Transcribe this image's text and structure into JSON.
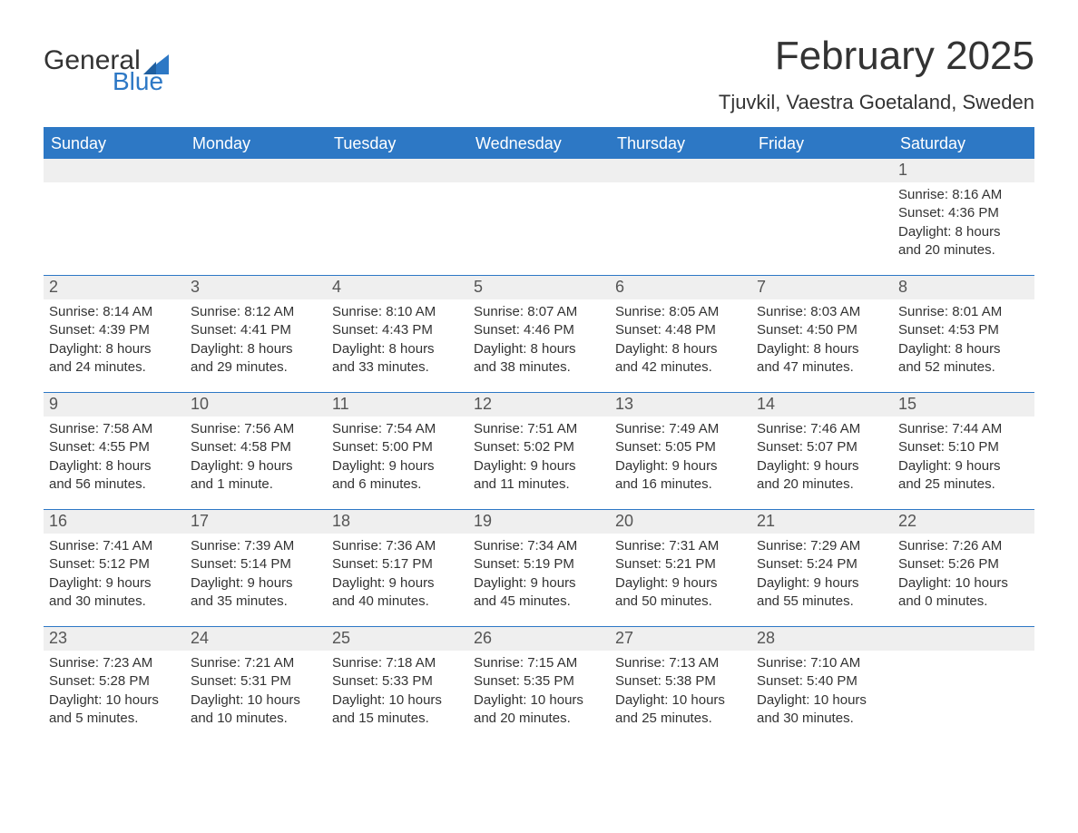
{
  "brand": {
    "word1": "General",
    "word2": "Blue",
    "logo_color": "#2d78c5"
  },
  "header": {
    "title": "February 2025",
    "location": "Tjuvkil, Vaestra Goetaland, Sweden"
  },
  "colors": {
    "header_bg": "#2d78c5",
    "header_text": "#ffffff",
    "daynum_bg": "#efefef",
    "body_text": "#333333",
    "rule": "#2d78c5",
    "page_bg": "#ffffff"
  },
  "weekdays": [
    "Sunday",
    "Monday",
    "Tuesday",
    "Wednesday",
    "Thursday",
    "Friday",
    "Saturday"
  ],
  "weeks": [
    [
      {
        "day": "",
        "sunrise": "",
        "sunset": "",
        "daylight1": "",
        "daylight2": ""
      },
      {
        "day": "",
        "sunrise": "",
        "sunset": "",
        "daylight1": "",
        "daylight2": ""
      },
      {
        "day": "",
        "sunrise": "",
        "sunset": "",
        "daylight1": "",
        "daylight2": ""
      },
      {
        "day": "",
        "sunrise": "",
        "sunset": "",
        "daylight1": "",
        "daylight2": ""
      },
      {
        "day": "",
        "sunrise": "",
        "sunset": "",
        "daylight1": "",
        "daylight2": ""
      },
      {
        "day": "",
        "sunrise": "",
        "sunset": "",
        "daylight1": "",
        "daylight2": ""
      },
      {
        "day": "1",
        "sunrise": "Sunrise: 8:16 AM",
        "sunset": "Sunset: 4:36 PM",
        "daylight1": "Daylight: 8 hours",
        "daylight2": "and 20 minutes."
      }
    ],
    [
      {
        "day": "2",
        "sunrise": "Sunrise: 8:14 AM",
        "sunset": "Sunset: 4:39 PM",
        "daylight1": "Daylight: 8 hours",
        "daylight2": "and 24 minutes."
      },
      {
        "day": "3",
        "sunrise": "Sunrise: 8:12 AM",
        "sunset": "Sunset: 4:41 PM",
        "daylight1": "Daylight: 8 hours",
        "daylight2": "and 29 minutes."
      },
      {
        "day": "4",
        "sunrise": "Sunrise: 8:10 AM",
        "sunset": "Sunset: 4:43 PM",
        "daylight1": "Daylight: 8 hours",
        "daylight2": "and 33 minutes."
      },
      {
        "day": "5",
        "sunrise": "Sunrise: 8:07 AM",
        "sunset": "Sunset: 4:46 PM",
        "daylight1": "Daylight: 8 hours",
        "daylight2": "and 38 minutes."
      },
      {
        "day": "6",
        "sunrise": "Sunrise: 8:05 AM",
        "sunset": "Sunset: 4:48 PM",
        "daylight1": "Daylight: 8 hours",
        "daylight2": "and 42 minutes."
      },
      {
        "day": "7",
        "sunrise": "Sunrise: 8:03 AM",
        "sunset": "Sunset: 4:50 PM",
        "daylight1": "Daylight: 8 hours",
        "daylight2": "and 47 minutes."
      },
      {
        "day": "8",
        "sunrise": "Sunrise: 8:01 AM",
        "sunset": "Sunset: 4:53 PM",
        "daylight1": "Daylight: 8 hours",
        "daylight2": "and 52 minutes."
      }
    ],
    [
      {
        "day": "9",
        "sunrise": "Sunrise: 7:58 AM",
        "sunset": "Sunset: 4:55 PM",
        "daylight1": "Daylight: 8 hours",
        "daylight2": "and 56 minutes."
      },
      {
        "day": "10",
        "sunrise": "Sunrise: 7:56 AM",
        "sunset": "Sunset: 4:58 PM",
        "daylight1": "Daylight: 9 hours",
        "daylight2": "and 1 minute."
      },
      {
        "day": "11",
        "sunrise": "Sunrise: 7:54 AM",
        "sunset": "Sunset: 5:00 PM",
        "daylight1": "Daylight: 9 hours",
        "daylight2": "and 6 minutes."
      },
      {
        "day": "12",
        "sunrise": "Sunrise: 7:51 AM",
        "sunset": "Sunset: 5:02 PM",
        "daylight1": "Daylight: 9 hours",
        "daylight2": "and 11 minutes."
      },
      {
        "day": "13",
        "sunrise": "Sunrise: 7:49 AM",
        "sunset": "Sunset: 5:05 PM",
        "daylight1": "Daylight: 9 hours",
        "daylight2": "and 16 minutes."
      },
      {
        "day": "14",
        "sunrise": "Sunrise: 7:46 AM",
        "sunset": "Sunset: 5:07 PM",
        "daylight1": "Daylight: 9 hours",
        "daylight2": "and 20 minutes."
      },
      {
        "day": "15",
        "sunrise": "Sunrise: 7:44 AM",
        "sunset": "Sunset: 5:10 PM",
        "daylight1": "Daylight: 9 hours",
        "daylight2": "and 25 minutes."
      }
    ],
    [
      {
        "day": "16",
        "sunrise": "Sunrise: 7:41 AM",
        "sunset": "Sunset: 5:12 PM",
        "daylight1": "Daylight: 9 hours",
        "daylight2": "and 30 minutes."
      },
      {
        "day": "17",
        "sunrise": "Sunrise: 7:39 AM",
        "sunset": "Sunset: 5:14 PM",
        "daylight1": "Daylight: 9 hours",
        "daylight2": "and 35 minutes."
      },
      {
        "day": "18",
        "sunrise": "Sunrise: 7:36 AM",
        "sunset": "Sunset: 5:17 PM",
        "daylight1": "Daylight: 9 hours",
        "daylight2": "and 40 minutes."
      },
      {
        "day": "19",
        "sunrise": "Sunrise: 7:34 AM",
        "sunset": "Sunset: 5:19 PM",
        "daylight1": "Daylight: 9 hours",
        "daylight2": "and 45 minutes."
      },
      {
        "day": "20",
        "sunrise": "Sunrise: 7:31 AM",
        "sunset": "Sunset: 5:21 PM",
        "daylight1": "Daylight: 9 hours",
        "daylight2": "and 50 minutes."
      },
      {
        "day": "21",
        "sunrise": "Sunrise: 7:29 AM",
        "sunset": "Sunset: 5:24 PM",
        "daylight1": "Daylight: 9 hours",
        "daylight2": "and 55 minutes."
      },
      {
        "day": "22",
        "sunrise": "Sunrise: 7:26 AM",
        "sunset": "Sunset: 5:26 PM",
        "daylight1": "Daylight: 10 hours",
        "daylight2": "and 0 minutes."
      }
    ],
    [
      {
        "day": "23",
        "sunrise": "Sunrise: 7:23 AM",
        "sunset": "Sunset: 5:28 PM",
        "daylight1": "Daylight: 10 hours",
        "daylight2": "and 5 minutes."
      },
      {
        "day": "24",
        "sunrise": "Sunrise: 7:21 AM",
        "sunset": "Sunset: 5:31 PM",
        "daylight1": "Daylight: 10 hours",
        "daylight2": "and 10 minutes."
      },
      {
        "day": "25",
        "sunrise": "Sunrise: 7:18 AM",
        "sunset": "Sunset: 5:33 PM",
        "daylight1": "Daylight: 10 hours",
        "daylight2": "and 15 minutes."
      },
      {
        "day": "26",
        "sunrise": "Sunrise: 7:15 AM",
        "sunset": "Sunset: 5:35 PM",
        "daylight1": "Daylight: 10 hours",
        "daylight2": "and 20 minutes."
      },
      {
        "day": "27",
        "sunrise": "Sunrise: 7:13 AM",
        "sunset": "Sunset: 5:38 PM",
        "daylight1": "Daylight: 10 hours",
        "daylight2": "and 25 minutes."
      },
      {
        "day": "28",
        "sunrise": "Sunrise: 7:10 AM",
        "sunset": "Sunset: 5:40 PM",
        "daylight1": "Daylight: 10 hours",
        "daylight2": "and 30 minutes."
      },
      {
        "day": "",
        "sunrise": "",
        "sunset": "",
        "daylight1": "",
        "daylight2": ""
      }
    ]
  ]
}
